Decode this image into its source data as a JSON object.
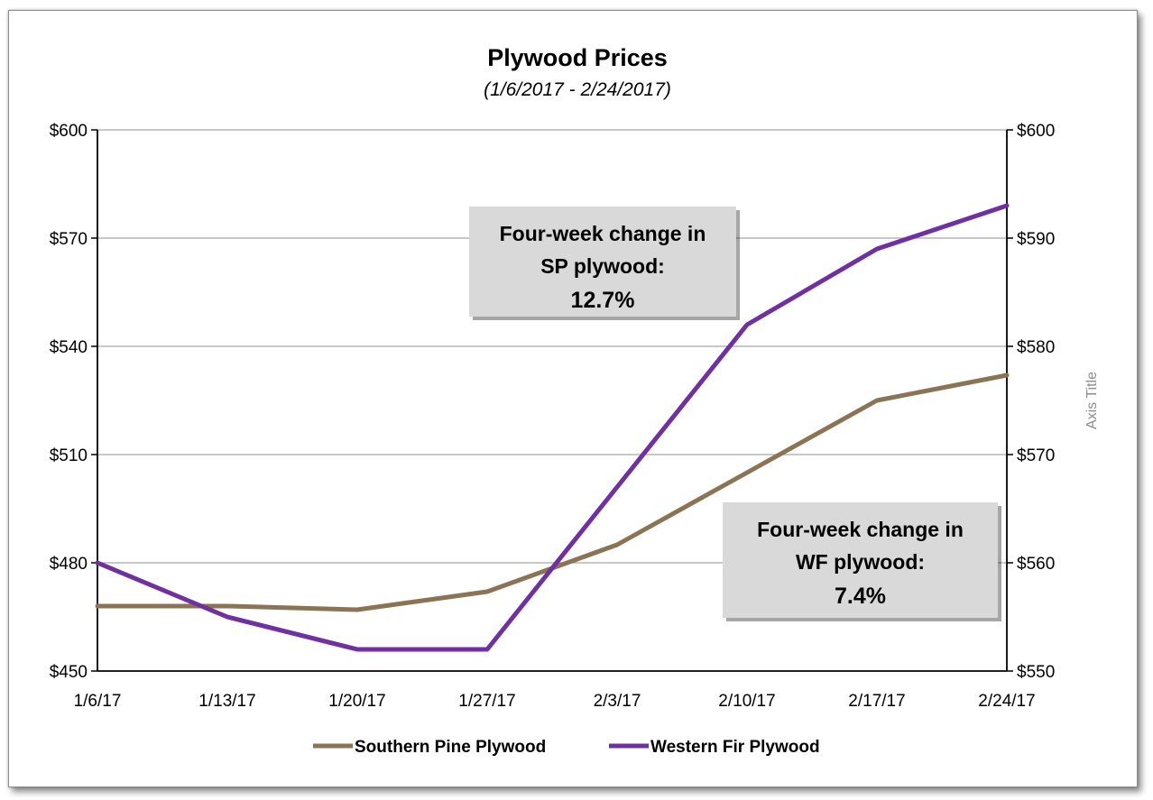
{
  "chart_data": {
    "type": "line",
    "title": "Plywood Prices",
    "subtitle": "(1/6/2017 - 2/24/2017)",
    "categories": [
      "1/6/17",
      "1/13/17",
      "1/20/17",
      "1/27/17",
      "2/3/17",
      "2/10/17",
      "2/17/17",
      "2/24/17"
    ],
    "y_left": {
      "ylim": [
        450,
        600
      ],
      "ticks": [
        "$450",
        "$480",
        "$510",
        "$540",
        "$570",
        "$600"
      ],
      "tick_values": [
        450,
        480,
        510,
        540,
        570,
        600
      ]
    },
    "y_right": {
      "ylim": [
        550,
        600
      ],
      "ticks": [
        "$550",
        "$560",
        "$570",
        "$580",
        "$590",
        "$600"
      ],
      "tick_values": [
        550,
        560,
        570,
        580,
        590,
        600
      ],
      "title": "Axis Title"
    },
    "series": [
      {
        "name": "Southern Pine Plywood",
        "axis": "left",
        "color": "#8B7355",
        "values": [
          468,
          468,
          467,
          472,
          485,
          505,
          525,
          532
        ]
      },
      {
        "name": "Western Fir Plywood",
        "axis": "right",
        "color": "#7030A0",
        "values": [
          560,
          555,
          552,
          552,
          567,
          582,
          589,
          593
        ]
      }
    ],
    "grid": true,
    "legend": "bottom",
    "annotations": [
      {
        "lines": [
          "Four-week change in",
          "SP plywood:"
        ],
        "value": "12.7%"
      },
      {
        "lines": [
          "Four-week change in",
          "WF plywood:"
        ],
        "value": "7.4%"
      }
    ]
  }
}
